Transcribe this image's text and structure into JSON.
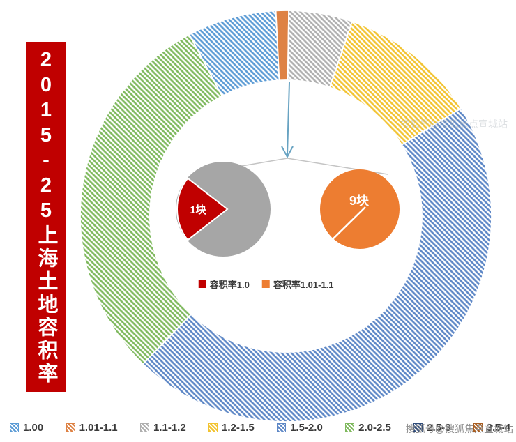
{
  "banner": {
    "title": "2015-25上海土地容积率"
  },
  "colors": {
    "banner_bg": "#C00000",
    "banner_text": "#FFFFFF",
    "arrow": "#68A3C2",
    "connector": "#C4C4C4",
    "watermark": "#8E8E8E",
    "watermark_faint": "#9FA8B0"
  },
  "chart_data": {
    "type": "donut",
    "title": "2015-25上海土地容积率",
    "legend_position": "bottom",
    "start_angle_deg": -28,
    "segments": [
      {
        "label": "1.00",
        "value": 7,
        "color": "#5B9BD5",
        "hatch": true
      },
      {
        "label": "1.01-1.1",
        "value": 1,
        "color": "#DE8244",
        "hatch": false
      },
      {
        "label": "1.1-1.2",
        "value": 5,
        "color": "#AFAFAF",
        "hatch": true
      },
      {
        "label": "1.2-1.5",
        "value": 11,
        "color": "#F2C330",
        "hatch": true
      },
      {
        "label": "1.5-2.0",
        "value": 46,
        "color": "#5D87C6",
        "hatch": true
      },
      {
        "label": "2.0-2.5",
        "value": 30,
        "color": "#7FB95E",
        "hatch": true
      },
      {
        "label": "2.5-3",
        "value": 0,
        "color": "#2E4B7A",
        "hatch": true
      },
      {
        "label": "3.5-4",
        "value": 0,
        "color": "#A85D20",
        "hatch": true
      }
    ],
    "breakout": {
      "gray_pie": {
        "body_color": "#A6A6A6",
        "wedge": {
          "label": "1块",
          "color": "#C00000"
        }
      },
      "orange_pie": {
        "label": "9块",
        "color": "#ED7D31"
      },
      "legend": [
        {
          "label": "容积率1.0",
          "color": "#C00000"
        },
        {
          "label": "容积率1.01-1.1",
          "color": "#ED7D31"
        }
      ]
    }
  },
  "watermark": {
    "text": "搜狐号@搜狐焦点宣城站"
  }
}
